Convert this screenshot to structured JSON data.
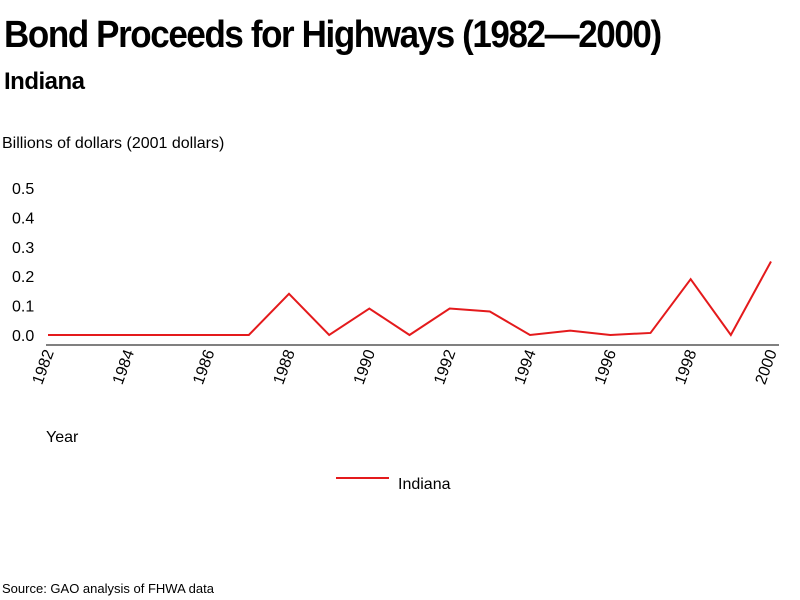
{
  "chart_data": {
    "type": "line",
    "title": "Bond Proceeds for Highways (1982—2000)",
    "subtitle": "Indiana",
    "ylabel": "Billions of dollars (2001 dollars)",
    "xlabel": "Year",
    "x": [
      1982,
      1983,
      1984,
      1985,
      1986,
      1987,
      1988,
      1989,
      1990,
      1991,
      1992,
      1993,
      1994,
      1995,
      1996,
      1997,
      1998,
      1999,
      2000
    ],
    "x_tick_labels": [
      "1982",
      "1984",
      "1986",
      "1988",
      "1990",
      "1992",
      "1994",
      "1996",
      "1998",
      "2000"
    ],
    "y_tick_labels": [
      "0.5",
      "0.4",
      "0.3",
      "0.2",
      "0.1",
      "0.0"
    ],
    "ylim": [
      0,
      0.5
    ],
    "grid": false,
    "legend_position": "bottom-center",
    "series": [
      {
        "name": "Indiana",
        "color": "#e41a1c",
        "values": [
          0.0,
          0.0,
          0.0,
          0.0,
          0.0,
          0.0,
          0.14,
          0.0,
          0.09,
          0.0,
          0.09,
          0.08,
          0.0,
          0.015,
          0.0,
          0.007,
          0.19,
          0.0,
          0.25
        ]
      }
    ],
    "source": "Source: GAO analysis of FHWA data"
  }
}
